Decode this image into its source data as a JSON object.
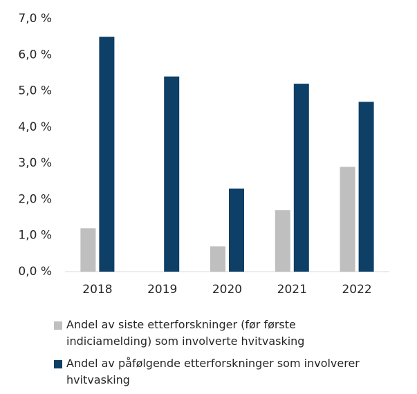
{
  "chart_data": {
    "type": "bar",
    "categories": [
      "2018",
      "2019",
      "2020",
      "2021",
      "2022"
    ],
    "series": [
      {
        "name": "Andel av siste etterforskninger (før første indiciamelding) som involverte hvitvasking",
        "color": "#bfbfbf",
        "values": [
          1.2,
          null,
          0.7,
          1.7,
          2.9
        ]
      },
      {
        "name": "Andel av påfølgende etterforskninger som involverer hvitvasking",
        "color": "#0e3f66",
        "values": [
          6.5,
          5.4,
          2.3,
          5.2,
          4.7
        ]
      }
    ],
    "ylim": [
      0,
      7
    ],
    "yticks": [
      {
        "value": 0,
        "label": "0,0 %"
      },
      {
        "value": 1,
        "label": "1,0 %"
      },
      {
        "value": 2,
        "label": "2,0 %"
      },
      {
        "value": 3,
        "label": "3,0 %"
      },
      {
        "value": 4,
        "label": "4,0 %"
      },
      {
        "value": 5,
        "label": "5,0 %"
      },
      {
        "value": 6,
        "label": "6,0 %"
      },
      {
        "value": 7,
        "label": "7,0 %"
      }
    ],
    "grid": false,
    "legend": "bottom"
  }
}
